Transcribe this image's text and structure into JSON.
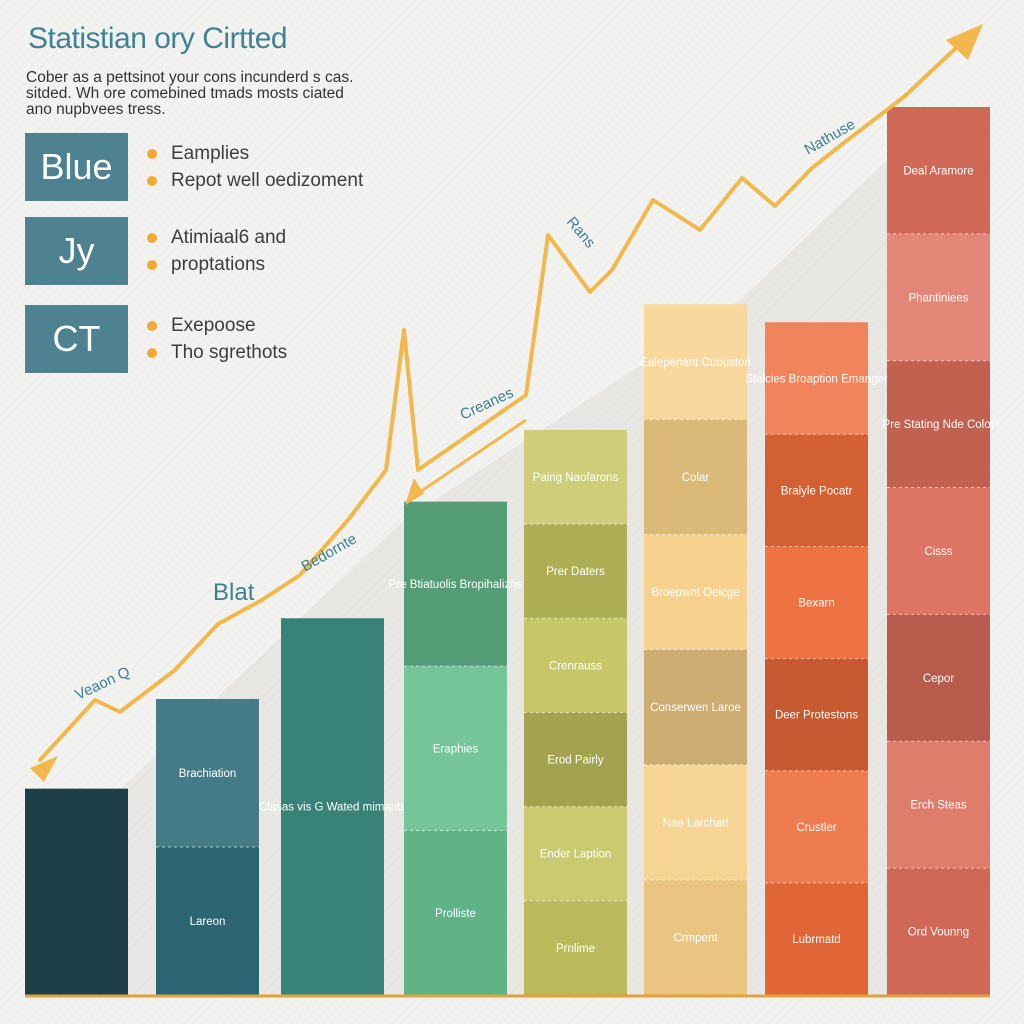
{
  "title": "Statistian ory Cirtted",
  "subtitle": "Cober as a pettsinot your cons incunderd s cas. sitded. Wh ore comebined tmads mosts ciated ano nupbvees tress.",
  "legend": [
    {
      "box": "Blue",
      "items": [
        "Eamplies",
        "Repot well oedizoment"
      ]
    },
    {
      "box": "Jy",
      "items": [
        "Atimiaal6 and",
        "proptations"
      ]
    },
    {
      "box": "CT",
      "items": [
        "Exepoose",
        "Tho sgrethots"
      ]
    }
  ],
  "colors": {
    "accent": "#f2aa35",
    "title": "#3f8292",
    "legend_box": "#4e8290",
    "trend_line": "#f2b84b"
  },
  "chart_data": {
    "type": "bar",
    "title": "Statistian ory Cirtted",
    "xlabel": "",
    "ylabel": "",
    "ylim": [
      0,
      100
    ],
    "grid": false,
    "categories": [
      "",
      "",
      "",
      "",
      "",
      "",
      "",
      ""
    ],
    "values": [
      23,
      33,
      42,
      55,
      63,
      77,
      75,
      99
    ],
    "bar_colors": [
      "#1d3f4a",
      "#2f6b79",
      "#3d8a80",
      "#66bd8e",
      "#c4c460",
      "#f7d088",
      "#ee6c3a",
      "#dc6e5c"
    ],
    "segment_labels": [
      [],
      [
        "Lareon",
        "Brachiation"
      ],
      [
        "Clasas vis G Wated mimants"
      ],
      [
        "Prolliste",
        "Eraphies",
        "Pre Btiatuolis Bropihalizns"
      ],
      [
        "Prnlime",
        "Ender Laption",
        "Erod Pairly",
        "Crenrauss",
        "Prer Daters",
        "Paing Naofarons"
      ],
      [
        "Crmpent",
        "Nae Larchatt",
        "Conserwen Laroe",
        "Broepwnt Oelcge",
        "Colar",
        "Ealepenant Cubuston"
      ],
      [
        "Lubrmatd",
        "Crustler",
        "Deer Protestons",
        "Bexarn",
        "Bralyle Pocatr",
        "Stelcies Broaption Emanger"
      ],
      [
        "Ord Vounng",
        "Erch Steas",
        "Cepor",
        "Cisss",
        "Pre Stating Nde Color",
        "Phantiniees",
        "Deal Aramore"
      ]
    ],
    "trend_labels": [
      "Veaon Q",
      "Blat",
      "Bedornte",
      "Creanes",
      "Rans",
      "Nathuse"
    ]
  }
}
